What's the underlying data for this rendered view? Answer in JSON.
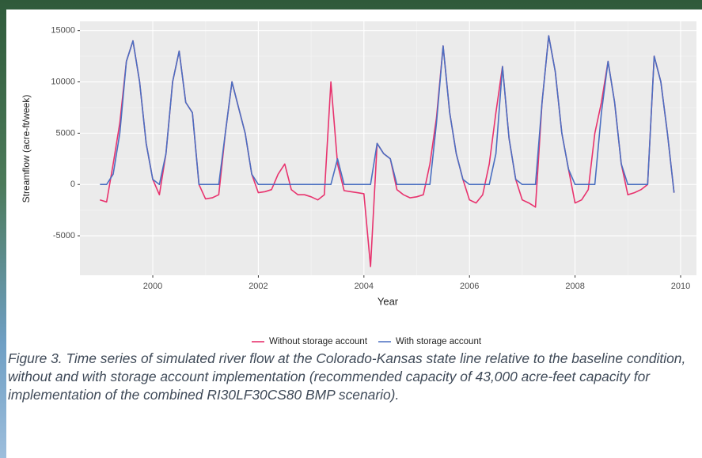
{
  "chart_data": {
    "type": "line",
    "xlabel": "Year",
    "ylabel": "Streamflow (acre-ft/week)",
    "xlim": [
      1998.62,
      2010.3
    ],
    "ylim": [
      -8850,
      15900
    ],
    "xticks": [
      2000,
      2002,
      2004,
      2006,
      2008,
      2010
    ],
    "yticks": [
      -5000,
      0,
      5000,
      10000,
      15000
    ],
    "grid": true,
    "legend": "bottom",
    "x": [
      1999,
      1999.125,
      1999.25,
      1999.375,
      1999.5,
      1999.625,
      1999.75,
      1999.875,
      2000,
      2000.125,
      2000.25,
      2000.375,
      2000.5,
      2000.625,
      2000.75,
      2000.875,
      2001,
      2001.125,
      2001.25,
      2001.375,
      2001.5,
      2001.625,
      2001.75,
      2001.875,
      2002,
      2002.125,
      2002.25,
      2002.375,
      2002.5,
      2002.625,
      2002.75,
      2002.875,
      2003,
      2003.125,
      2003.25,
      2003.375,
      2003.5,
      2003.625,
      2003.75,
      2003.875,
      2004,
      2004.125,
      2004.25,
      2004.375,
      2004.5,
      2004.625,
      2004.75,
      2004.875,
      2005,
      2005.125,
      2005.25,
      2005.375,
      2005.5,
      2005.625,
      2005.75,
      2005.875,
      2006,
      2006.125,
      2006.25,
      2006.375,
      2006.5,
      2006.625,
      2006.75,
      2006.875,
      2007,
      2007.125,
      2007.25,
      2007.375,
      2007.5,
      2007.625,
      2007.75,
      2007.875,
      2008,
      2008.125,
      2008.25,
      2008.375,
      2008.5,
      2008.625,
      2008.75,
      2008.875,
      2009,
      2009.125,
      2009.25,
      2009.375,
      2009.5,
      2009.625,
      2009.75,
      2009.875
    ],
    "series": [
      {
        "name": "Without storage account",
        "color": "#e8336e",
        "values": [
          -1500,
          -1700,
          2000,
          6000,
          12000,
          14000,
          10000,
          4000,
          500,
          -1000,
          3000,
          10000,
          13000,
          8000,
          7000,
          0,
          -1400,
          -1300,
          -1000,
          5000,
          10000,
          7500,
          5000,
          1000,
          -800,
          -700,
          -500,
          1000,
          2000,
          -500,
          -1000,
          -1000,
          -1200,
          -1500,
          -1000,
          10000,
          2000,
          -600,
          -700,
          -800,
          -900,
          -8000,
          4000,
          3000,
          2500,
          -500,
          -1000,
          -1300,
          -1200,
          -1000,
          2000,
          6500,
          13500,
          7000,
          3000,
          500,
          -1500,
          -1800,
          -1000,
          2000,
          7000,
          11500,
          4500,
          500,
          -1500,
          -1800,
          -2200,
          8000,
          14500,
          11000,
          5000,
          1500,
          -1800,
          -1500,
          -500,
          5000,
          8000,
          12000,
          8000,
          2000,
          -1000,
          -800,
          -500,
          0,
          12500,
          10000,
          5000,
          -800
        ]
      },
      {
        "name": "With storage account",
        "color": "#4a6fc1",
        "values": [
          0,
          0,
          1000,
          5000,
          12000,
          14000,
          10000,
          4000,
          500,
          0,
          3000,
          10000,
          13000,
          8000,
          7000,
          0,
          0,
          0,
          0,
          5000,
          10000,
          7500,
          5000,
          1000,
          0,
          0,
          0,
          0,
          0,
          0,
          0,
          0,
          0,
          0,
          0,
          0,
          2500,
          0,
          0,
          0,
          0,
          0,
          4000,
          3000,
          2500,
          0,
          0,
          0,
          0,
          0,
          0,
          6000,
          13500,
          7000,
          3000,
          500,
          0,
          0,
          0,
          0,
          3000,
          11500,
          4500,
          500,
          0,
          0,
          0,
          8000,
          14500,
          11000,
          5000,
          1500,
          0,
          0,
          0,
          0,
          7000,
          12000,
          8000,
          2000,
          0,
          0,
          0,
          0,
          12500,
          10000,
          5000,
          -800
        ]
      }
    ],
    "caption": "Figure 3. Time series of simulated river flow at the Colorado-Kansas state line relative to the baseline condition, without and with storage account implementation (recommended capacity of 43,000 acre-feet capacity for implementation of the combined RI30LF30CS80 BMP scenario)."
  }
}
